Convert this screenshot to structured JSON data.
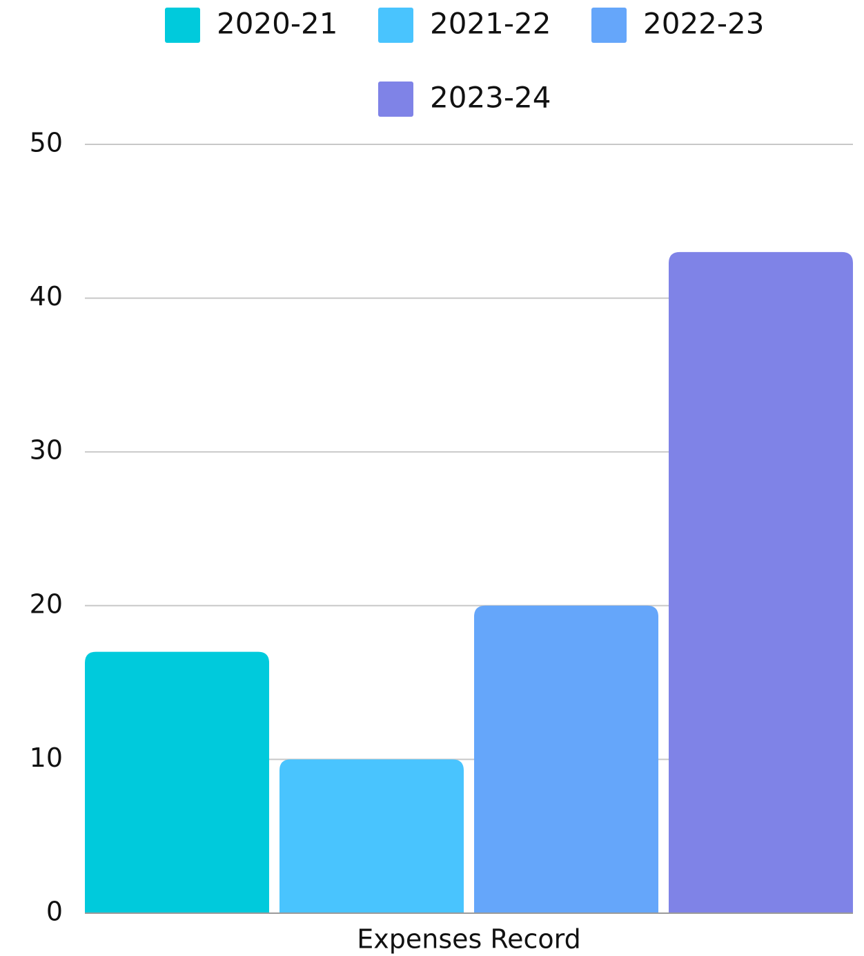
{
  "chart_data": {
    "type": "bar",
    "categories": [
      "Expenses Record"
    ],
    "series": [
      {
        "name": "2020-21",
        "values": [
          17
        ],
        "color": "#00CADC"
      },
      {
        "name": "2021-22",
        "values": [
          10
        ],
        "color": "#49C4FE"
      },
      {
        "name": "2022-23",
        "values": [
          20
        ],
        "color": "#65A6FA"
      },
      {
        "name": "2023-24",
        "values": [
          43
        ],
        "color": "#7F83E7"
      }
    ],
    "title": "",
    "xlabel": "",
    "ylabel": "",
    "ylim": [
      0,
      50
    ],
    "yticks": [
      0,
      10,
      20,
      30,
      40,
      50
    ],
    "grid": true,
    "legend_position": "top"
  }
}
